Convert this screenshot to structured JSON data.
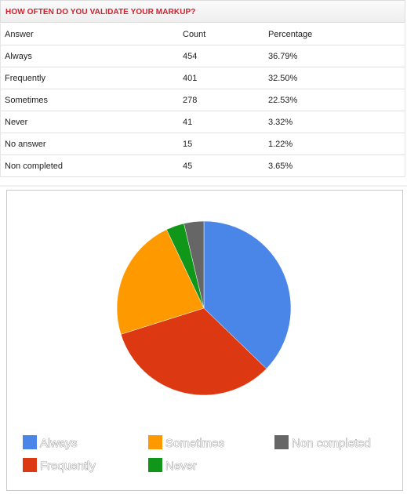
{
  "header": {
    "title": "HOW OFTEN DO YOU VALIDATE YOUR MARKUP?"
  },
  "table": {
    "columns": [
      "Answer",
      "Count",
      "Percentage"
    ],
    "rows": [
      [
        "Always",
        "454",
        "36.79%"
      ],
      [
        "Frequently",
        "401",
        "32.50%"
      ],
      [
        "Sometimes",
        "278",
        "22.53%"
      ],
      [
        "Never",
        "41",
        "3.32%"
      ],
      [
        "No answer",
        "15",
        "1.22%"
      ],
      [
        "Non completed",
        "45",
        "3.65%"
      ]
    ]
  },
  "chart_data": {
    "type": "pie",
    "title": "",
    "slices": [
      {
        "label": "Always",
        "value": 454,
        "color": "#4a86e8"
      },
      {
        "label": "Frequently",
        "value": 401,
        "color": "#dc3912"
      },
      {
        "label": "Sometimes",
        "value": 278,
        "color": "#ff9900"
      },
      {
        "label": "Never",
        "value": 41,
        "color": "#109618"
      },
      {
        "label": "Non completed",
        "value": 45,
        "color": "#666666"
      }
    ],
    "legend_position": "bottom"
  }
}
